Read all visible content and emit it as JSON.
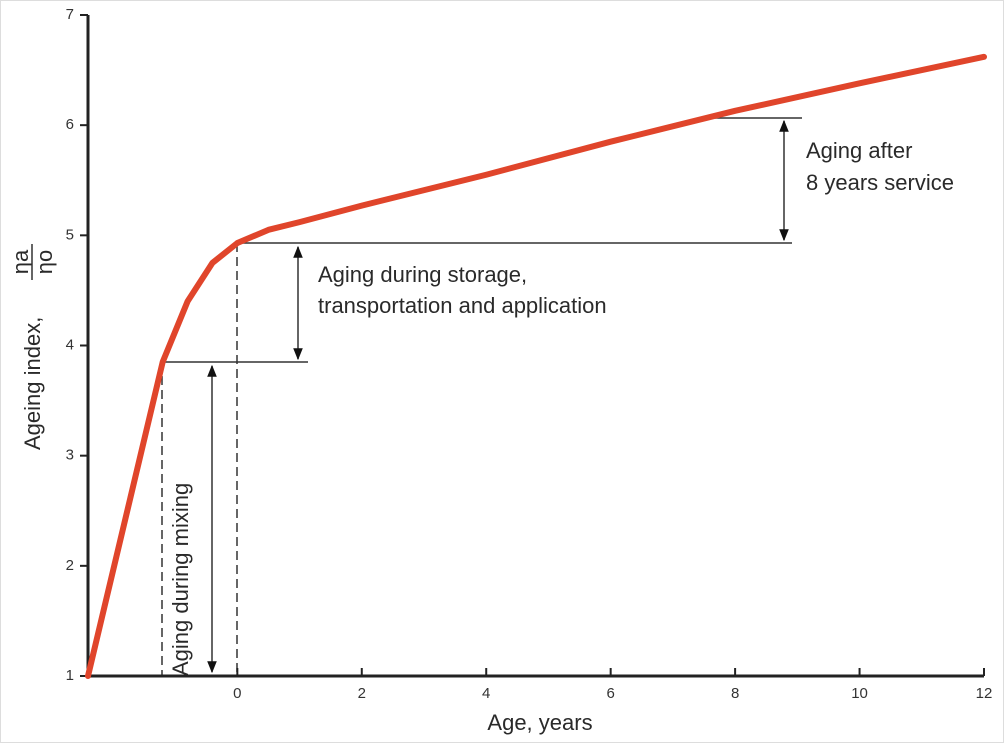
{
  "chart_data": {
    "type": "line",
    "x_label": "Age, years",
    "y_label": "Ageing index,",
    "y_label_numerator": "ηa",
    "y_label_denominator": "ηo",
    "annotations": [
      "Aging after",
      "8 years service",
      "Aging during storage,",
      "transportation and application",
      "Aging during mixing"
    ],
    "series": [
      {
        "color": "#e0452b",
        "x": [
          -2.4,
          -1.2,
          -0.8,
          -0.4,
          0,
          0.5,
          1,
          2,
          4,
          6,
          8,
          10,
          12
        ],
        "values": [
          1,
          3.85,
          4.4,
          4.75,
          4.93,
          5.05,
          5.12,
          5.27,
          5.55,
          5.85,
          6.13,
          6.38,
          6.62
        ]
      }
    ],
    "xlim": [
      -2.4,
      12
    ],
    "xticks": [
      0,
      2,
      4,
      6,
      8,
      10,
      12
    ],
    "ylim": [
      1,
      7
    ],
    "yticks": [
      1,
      2,
      3,
      4,
      5,
      6,
      7
    ]
  }
}
